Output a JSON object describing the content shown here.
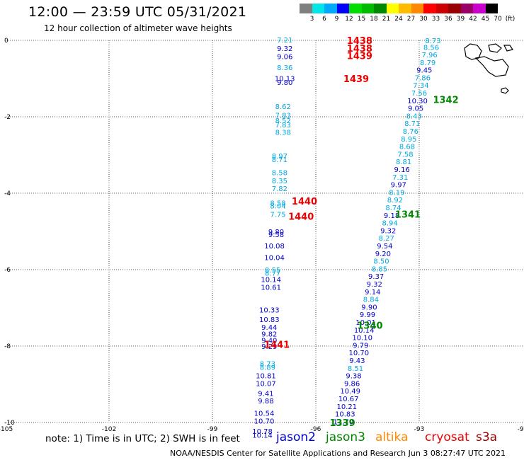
{
  "header": {
    "title": "12:00 — 23:59 UTC 05/31/2021",
    "subtitle": "12 hour collection of altimeter wave heights"
  },
  "colorbar": {
    "colors": [
      "#7f7f7f",
      "#00e5e5",
      "#00a8ff",
      "#0000ff",
      "#00dd00",
      "#00bb00",
      "#008800",
      "#ffff00",
      "#ffbb00",
      "#ff8800",
      "#ff0000",
      "#cc0000",
      "#990000",
      "#990066",
      "#cc00cc",
      "#000000"
    ],
    "labels": [
      "3",
      "6",
      "9",
      "12",
      "15",
      "18",
      "21",
      "24",
      "27",
      "30",
      "33",
      "36",
      "39",
      "42",
      "45",
      "70",
      "(ft)"
    ]
  },
  "footer": {
    "note": "note:  1) Time is in UTC;  2) SWH is in feet",
    "legend": [
      {
        "name": "jason2",
        "color": "#0000cc"
      },
      {
        "name": "jason3",
        "color": "#008800"
      },
      {
        "name": "altika",
        "color": "#ff8800"
      },
      {
        "name": "cryosat",
        "color": "#ee0000"
      },
      {
        "name": "s3a",
        "color": "#990000"
      }
    ],
    "credit": "NOAA/NESDIS Center for Satellite Applications and Research    Jun  3 08:27:47 UTC 2021"
  },
  "chart_data": {
    "type": "scatter",
    "title": "12:00 — 23:59 UTC 05/31/2021",
    "subtitle": "12 hour collection of altimeter wave heights",
    "xlim": [
      -105,
      -90
    ],
    "ylim": [
      -10,
      0
    ],
    "x_ticks": [
      "-105",
      "-102",
      "-99",
      "-96",
      "-93",
      "-90"
    ],
    "y_ticks": [
      "0",
      "-2",
      "-4",
      "-6",
      "-8",
      "-10"
    ],
    "grid": true,
    "tracks": [
      {
        "satellite": "cryosat",
        "color": "#ee0000",
        "time_labels": [
          {
            "label": "1438",
            "lon": -95.1,
            "lat": 0.0
          },
          {
            "label": "1438",
            "lon": -95.1,
            "lat": -0.2
          },
          {
            "label": "1439",
            "lon": -95.1,
            "lat": -0.4
          },
          {
            "label": "1439",
            "lon": -95.2,
            "lat": -1.0
          },
          {
            "label": "1440",
            "lon": -96.7,
            "lat": -4.2
          },
          {
            "label": "1440",
            "lon": -96.8,
            "lat": -4.6
          },
          {
            "label": "1441",
            "lon": -97.5,
            "lat": -7.95
          }
        ],
        "points": [
          {
            "lon": -96.9,
            "lat": 0.02,
            "swh": 7.21
          },
          {
            "lon": -96.9,
            "lat": -0.2,
            "swh": 9.32
          },
          {
            "lon": -96.9,
            "lat": -0.42,
            "swh": 9.06
          },
          {
            "lon": -96.9,
            "lat": -0.7,
            "swh": 8.36
          },
          {
            "lon": -96.9,
            "lat": -0.99,
            "swh": 10.13
          },
          {
            "lon": -96.9,
            "lat": -1.09,
            "swh": 9.8
          },
          {
            "lon": -96.95,
            "lat": -1.72,
            "swh": 8.62
          },
          {
            "lon": -96.95,
            "lat": -1.95,
            "swh": 7.83
          },
          {
            "lon": -96.95,
            "lat": -2.09,
            "swh": 8.52
          },
          {
            "lon": -96.95,
            "lat": -2.2,
            "swh": 7.83
          },
          {
            "lon": -96.95,
            "lat": -2.4,
            "swh": 8.38
          },
          {
            "lon": -97.05,
            "lat": -3.02,
            "swh": 8.97
          },
          {
            "lon": -97.05,
            "lat": -3.11,
            "swh": 8.71
          },
          {
            "lon": -97.05,
            "lat": -3.45,
            "swh": 8.58
          },
          {
            "lon": -97.05,
            "lat": -3.67,
            "swh": 8.35
          },
          {
            "lon": -97.05,
            "lat": -3.87,
            "swh": 7.82
          },
          {
            "lon": -97.1,
            "lat": -4.25,
            "swh": 8.58
          },
          {
            "lon": -97.1,
            "lat": -4.32,
            "swh": 8.04
          },
          {
            "lon": -97.1,
            "lat": -4.55,
            "swh": 7.75
          },
          {
            "lon": -97.15,
            "lat": -5.0,
            "swh": 9.8
          },
          {
            "lon": -97.15,
            "lat": -5.07,
            "swh": 9.58
          },
          {
            "lon": -97.2,
            "lat": -5.37,
            "swh": 10.08
          },
          {
            "lon": -97.2,
            "lat": -5.68,
            "swh": 10.04
          },
          {
            "lon": -97.25,
            "lat": -6.0,
            "swh": 8.55
          },
          {
            "lon": -97.25,
            "lat": -6.08,
            "swh": 8.77
          },
          {
            "lon": -97.3,
            "lat": -6.25,
            "swh": 10.14
          },
          {
            "lon": -97.3,
            "lat": -6.45,
            "swh": 10.61
          },
          {
            "lon": -97.35,
            "lat": -7.05,
            "swh": 10.33
          },
          {
            "lon": -97.35,
            "lat": -7.3,
            "swh": 10.83
          },
          {
            "lon": -97.35,
            "lat": -7.5,
            "swh": 9.44
          },
          {
            "lon": -97.35,
            "lat": -7.68,
            "swh": 9.82
          },
          {
            "lon": -97.35,
            "lat": -7.84,
            "swh": 9.4
          },
          {
            "lon": -97.35,
            "lat": -8.0,
            "swh": 9.29
          },
          {
            "lon": -97.4,
            "lat": -8.45,
            "swh": 8.73
          },
          {
            "lon": -97.4,
            "lat": -8.55,
            "swh": 8.89
          },
          {
            "lon": -97.45,
            "lat": -8.77,
            "swh": 10.81
          },
          {
            "lon": -97.45,
            "lat": -8.97,
            "swh": 10.07
          },
          {
            "lon": -97.45,
            "lat": -9.23,
            "swh": 9.41
          },
          {
            "lon": -97.45,
            "lat": -9.43,
            "swh": 9.88
          },
          {
            "lon": -97.5,
            "lat": -9.75,
            "swh": 10.54
          },
          {
            "lon": -97.5,
            "lat": -9.95,
            "swh": 10.7
          },
          {
            "lon": -97.55,
            "lat": -10.22,
            "swh": 10.78
          },
          {
            "lon": -97.55,
            "lat": -10.32,
            "swh": 10.14
          }
        ]
      },
      {
        "satellite": "jason3",
        "color": "#008800",
        "time_labels": [
          {
            "label": "1342",
            "lon": -92.6,
            "lat": -1.55
          },
          {
            "label": "1341",
            "lon": -93.7,
            "lat": -4.55
          },
          {
            "label": "1340",
            "lon": -94.8,
            "lat": -7.45
          },
          {
            "label": "1339",
            "lon": -95.6,
            "lat": -10.0
          }
        ],
        "points": [
          {
            "lon": -92.6,
            "lat": 0.0,
            "swh": 8.73
          },
          {
            "lon": -92.65,
            "lat": -0.18,
            "swh": 8.56
          },
          {
            "lon": -92.7,
            "lat": -0.37,
            "swh": 7.96
          },
          {
            "lon": -92.75,
            "lat": -0.57,
            "swh": 8.79
          },
          {
            "lon": -92.85,
            "lat": -0.77,
            "swh": 9.45
          },
          {
            "lon": -92.9,
            "lat": -0.97,
            "swh": 7.86
          },
          {
            "lon": -92.95,
            "lat": -1.17,
            "swh": 7.34
          },
          {
            "lon": -93.0,
            "lat": -1.37,
            "swh": 7.56
          },
          {
            "lon": -93.05,
            "lat": -1.57,
            "swh": 10.3
          },
          {
            "lon": -93.1,
            "lat": -1.77,
            "swh": 9.05
          },
          {
            "lon": -93.15,
            "lat": -1.97,
            "swh": 8.43
          },
          {
            "lon": -93.2,
            "lat": -2.17,
            "swh": 8.71
          },
          {
            "lon": -93.25,
            "lat": -2.37,
            "swh": 8.76
          },
          {
            "lon": -93.3,
            "lat": -2.57,
            "swh": 8.95
          },
          {
            "lon": -93.35,
            "lat": -2.77,
            "swh": 8.68
          },
          {
            "lon": -93.4,
            "lat": -2.97,
            "swh": 7.58
          },
          {
            "lon": -93.45,
            "lat": -3.17,
            "swh": 8.81
          },
          {
            "lon": -93.5,
            "lat": -3.37,
            "swh": 9.16
          },
          {
            "lon": -93.55,
            "lat": -3.57,
            "swh": 7.31
          },
          {
            "lon": -93.6,
            "lat": -3.77,
            "swh": 9.97
          },
          {
            "lon": -93.65,
            "lat": -3.97,
            "swh": 8.19
          },
          {
            "lon": -93.7,
            "lat": -4.17,
            "swh": 8.92
          },
          {
            "lon": -93.75,
            "lat": -4.37,
            "swh": 8.74
          },
          {
            "lon": -93.8,
            "lat": -4.57,
            "swh": 9.18
          },
          {
            "lon": -93.85,
            "lat": -4.77,
            "swh": 8.94
          },
          {
            "lon": -93.9,
            "lat": -4.97,
            "swh": 9.32
          },
          {
            "lon": -93.95,
            "lat": -5.17,
            "swh": 8.27
          },
          {
            "lon": -94.0,
            "lat": -5.37,
            "swh": 9.54
          },
          {
            "lon": -94.05,
            "lat": -5.57,
            "swh": 9.2
          },
          {
            "lon": -94.1,
            "lat": -5.77,
            "swh": 8.5
          },
          {
            "lon": -94.15,
            "lat": -5.97,
            "swh": 8.85
          },
          {
            "lon": -94.25,
            "lat": -6.17,
            "swh": 9.37
          },
          {
            "lon": -94.3,
            "lat": -6.37,
            "swh": 9.32
          },
          {
            "lon": -94.35,
            "lat": -6.57,
            "swh": 9.14
          },
          {
            "lon": -94.4,
            "lat": -6.77,
            "swh": 8.84
          },
          {
            "lon": -94.45,
            "lat": -6.97,
            "swh": 9.9
          },
          {
            "lon": -94.5,
            "lat": -7.17,
            "swh": 9.99
          },
          {
            "lon": -94.55,
            "lat": -7.37,
            "swh": 10.01
          },
          {
            "lon": -94.6,
            "lat": -7.57,
            "swh": 10.14
          },
          {
            "lon": -94.65,
            "lat": -7.77,
            "swh": 10.1
          },
          {
            "lon": -94.7,
            "lat": -7.97,
            "swh": 9.79
          },
          {
            "lon": -94.75,
            "lat": -8.17,
            "swh": 10.7
          },
          {
            "lon": -94.8,
            "lat": -8.37,
            "swh": 9.43
          },
          {
            "lon": -94.85,
            "lat": -8.57,
            "swh": 8.51
          },
          {
            "lon": -94.9,
            "lat": -8.77,
            "swh": 9.38
          },
          {
            "lon": -94.95,
            "lat": -8.97,
            "swh": 9.86
          },
          {
            "lon": -95.0,
            "lat": -9.17,
            "swh": 10.49
          },
          {
            "lon": -95.05,
            "lat": -9.37,
            "swh": 10.67
          },
          {
            "lon": -95.1,
            "lat": -9.57,
            "swh": 10.21
          },
          {
            "lon": -95.15,
            "lat": -9.77,
            "swh": 10.83
          },
          {
            "lon": -95.2,
            "lat": -9.97,
            "swh": 11.7
          }
        ]
      }
    ]
  }
}
